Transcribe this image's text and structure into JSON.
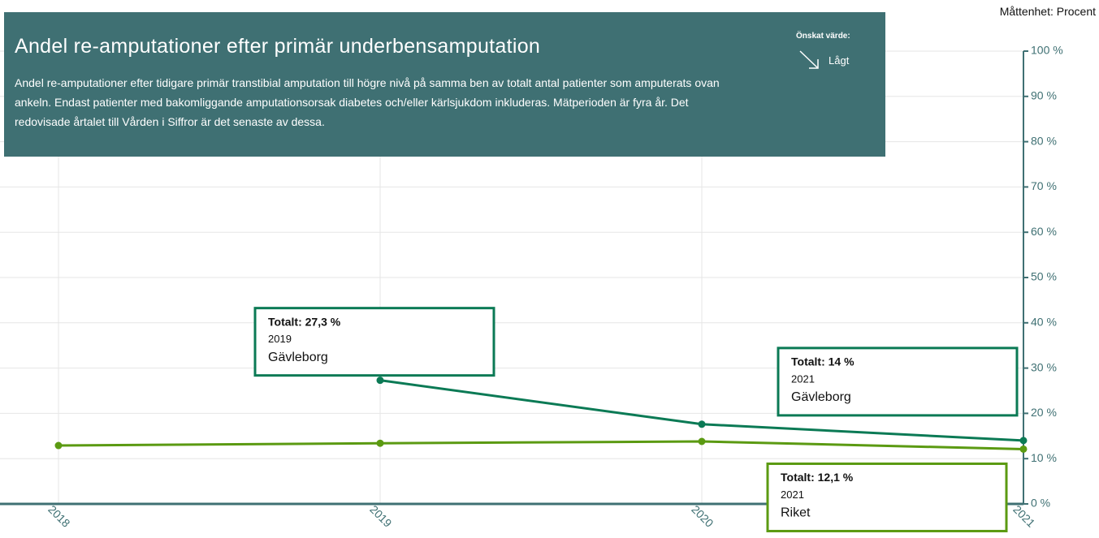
{
  "chart_data": {
    "type": "line",
    "title": "Andel re-amputationer efter primär underbensamputation",
    "subtitle": "Andel re-amputationer efter tidigare primär transtibial amputation till högre nivå på samma ben av totalt antal patienter som amputerats ovan ankeln. Endast patienter med bakomliggande amputationsorsak diabetes och/eller kärlsjukdom inkluderas. Mätperioden är fyra år. Det redovisade årtalet till Vården i Siffror är det senaste av dessa.",
    "desired_label": "Önskat värde:",
    "desired_value": "Lågt",
    "unit_label": "Måttenhet: Procent",
    "categories": [
      "2018",
      "2019",
      "2020",
      "2021"
    ],
    "series": [
      {
        "name": "Gävleborg",
        "color": "#0b7a55",
        "values": [
          null,
          27.3,
          17.6,
          14
        ],
        "value_labels": [
          null,
          "Totalt: 27,3 %",
          null,
          "Totalt: 14 %"
        ]
      },
      {
        "name": "Riket",
        "color": "#5b9a12",
        "values": [
          12.9,
          13.4,
          13.8,
          12.1
        ],
        "value_labels": [
          null,
          null,
          null,
          "Totalt: 12,1 %"
        ]
      }
    ],
    "ylim": [
      0,
      100
    ],
    "yticks": [
      {
        "value": 0,
        "label": "0 %"
      },
      {
        "value": 10,
        "label": "10 %"
      },
      {
        "value": 20,
        "label": "20 %"
      },
      {
        "value": 30,
        "label": "30 %"
      },
      {
        "value": 40,
        "label": "40 %"
      },
      {
        "value": 50,
        "label": "50 %"
      },
      {
        "value": 60,
        "label": "60 %"
      },
      {
        "value": 70,
        "label": "70 %"
      },
      {
        "value": 80,
        "label": "80 %"
      },
      {
        "value": 90,
        "label": "90 %"
      },
      {
        "value": 100,
        "label": "100 %"
      }
    ],
    "grid": true,
    "y_axis_side": "right"
  }
}
